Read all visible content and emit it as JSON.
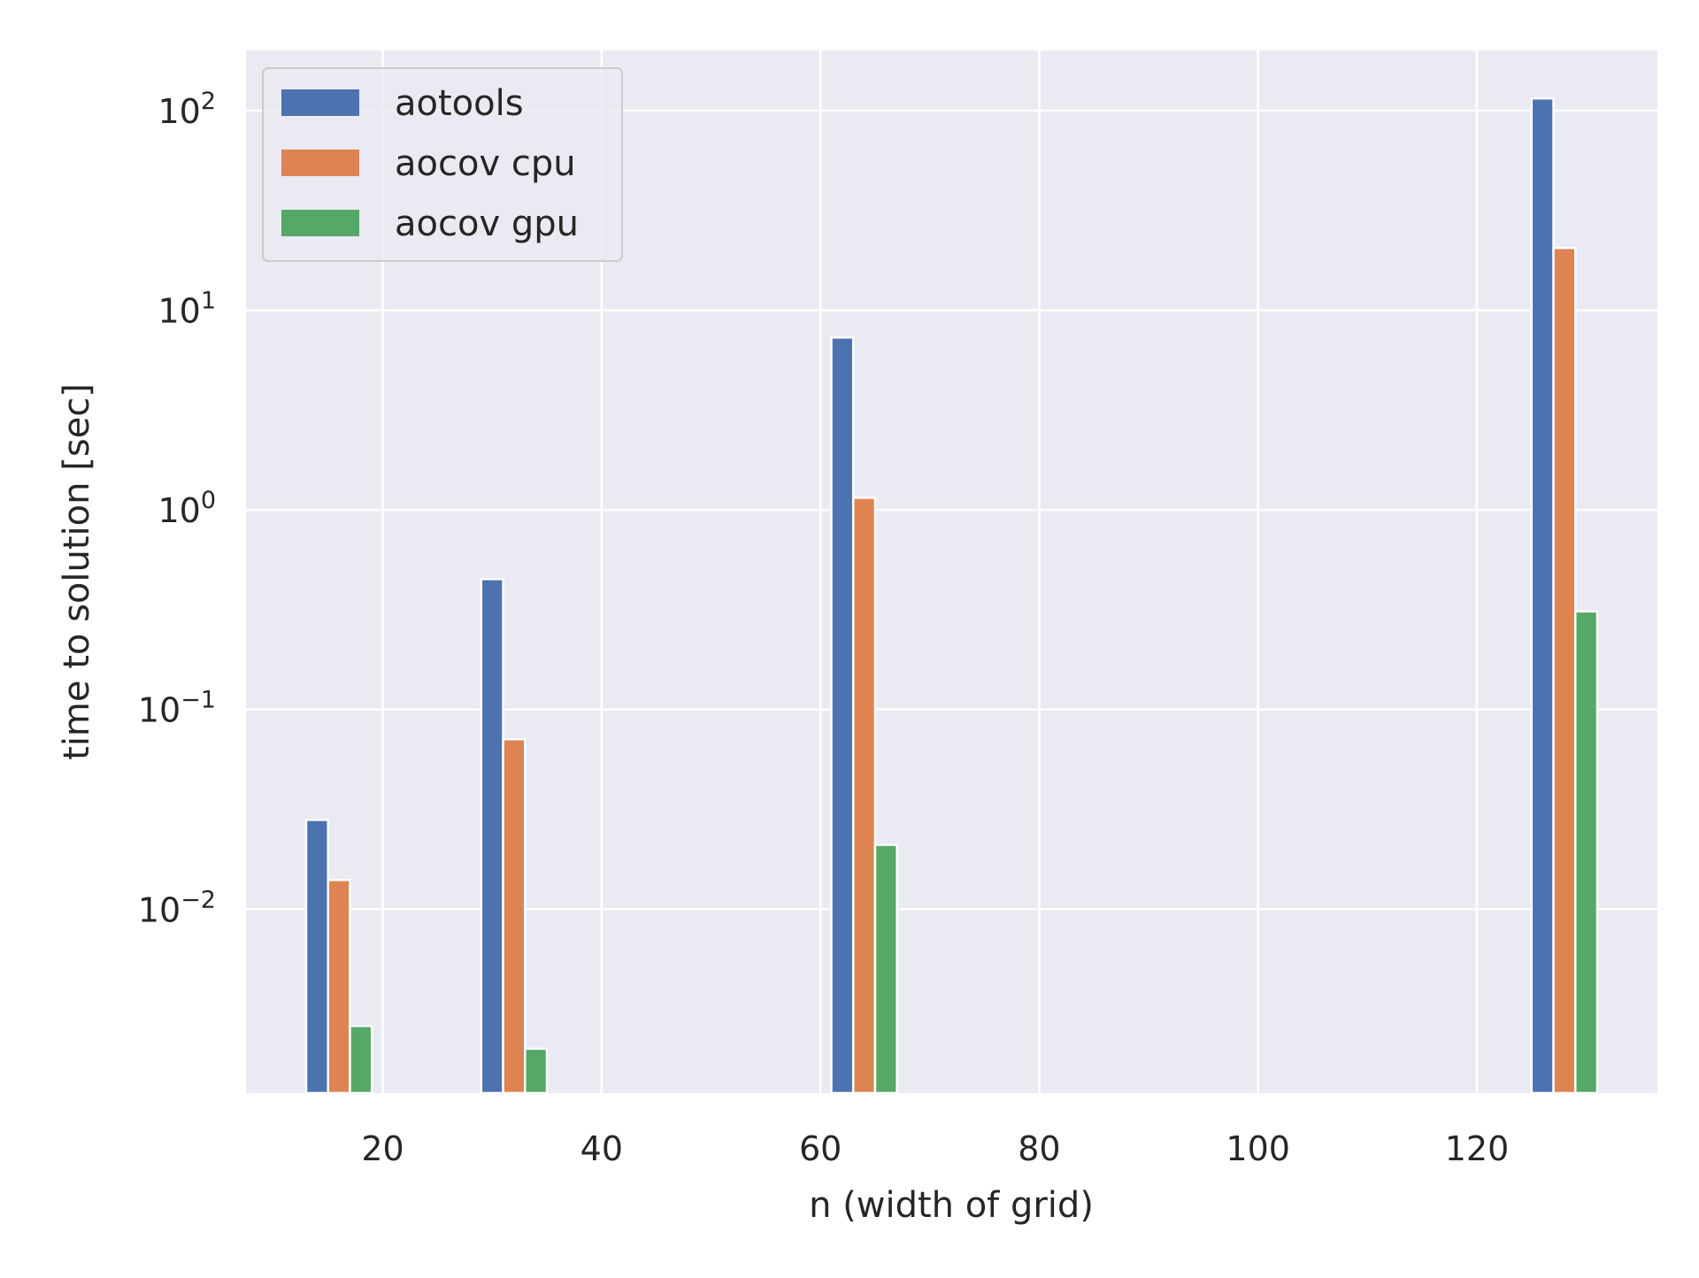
{
  "chart_data": {
    "type": "bar",
    "xlabel": "n (width of grid)",
    "ylabel": "time to solution [sec]",
    "xlim": [
      7.5,
      136.5
    ],
    "ylim": [
      0.0012,
      200
    ],
    "yscale": "log",
    "grid": true,
    "legend_position": "top-left",
    "x_ticks": [
      20,
      40,
      60,
      80,
      100,
      120
    ],
    "x_tick_labels": [
      "20",
      "40",
      "60",
      "80",
      "100",
      "120"
    ],
    "y_ticks": [
      0.01,
      0.1,
      1,
      10,
      100
    ],
    "y_tick_labels": [
      {
        "base": "10",
        "exp": "−2"
      },
      {
        "base": "10",
        "exp": "−1"
      },
      {
        "base": "10",
        "exp": "0"
      },
      {
        "base": "10",
        "exp": "1"
      },
      {
        "base": "10",
        "exp": "2"
      }
    ],
    "bar_width": 2,
    "x": [
      16,
      32,
      64,
      128
    ],
    "series": [
      {
        "name": "aotools",
        "color": "#4c72b0",
        "offset": -2,
        "values": [
          0.028,
          0.45,
          7.3,
          115
        ]
      },
      {
        "name": "aocov cpu",
        "color": "#dd8452",
        "offset": 0,
        "values": [
          0.014,
          0.071,
          1.15,
          20.5
        ]
      },
      {
        "name": "aocov gpu",
        "color": "#55a868",
        "offset": 2,
        "values": [
          0.0026,
          0.002,
          0.021,
          0.31
        ]
      }
    ]
  }
}
